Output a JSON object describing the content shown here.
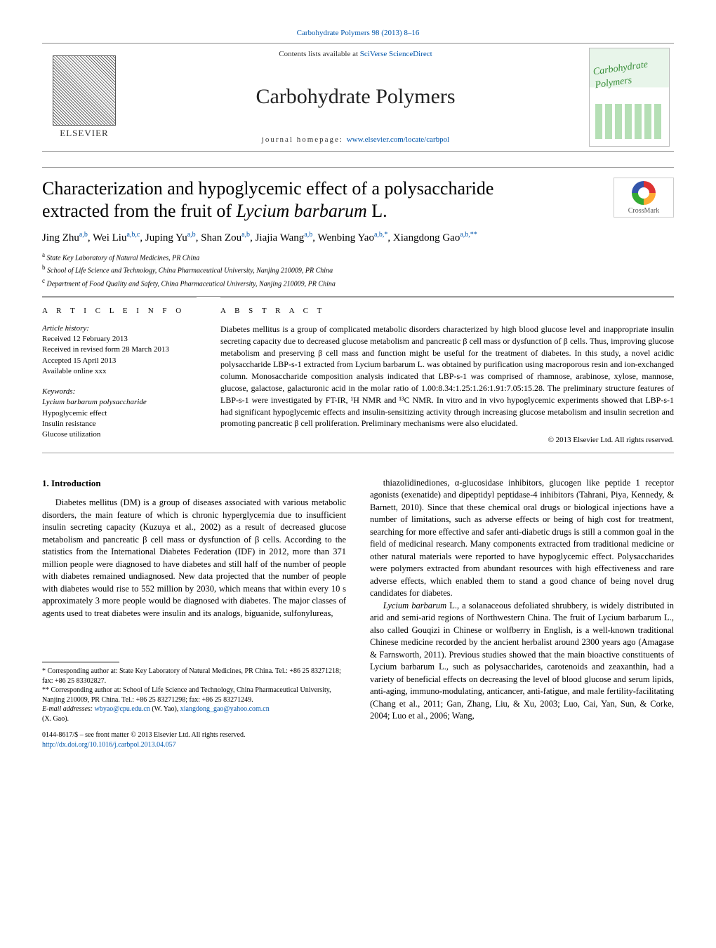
{
  "citation": "Carbohydrate Polymers 98 (2013) 8–16",
  "header": {
    "contents_prefix": "Contents lists available at ",
    "contents_link": "SciVerse ScienceDirect",
    "journal": "Carbohydrate Polymers",
    "homepage_prefix": "journal homepage: ",
    "homepage_link": "www.elsevier.com/locate/carbpol",
    "publisher": "ELSEVIER",
    "cover_label": "Carbohydrate Polymers"
  },
  "crossmark": "CrossMark",
  "title_line1": "Characterization and hypoglycemic effect of a polysaccharide",
  "title_line2_pre": "extracted from the fruit of ",
  "title_line2_ital": "Lycium barbarum",
  "title_line2_post": " L.",
  "authors_html": "Jing Zhu<sup>a,b</sup>, Wei Liu<sup>a,b,c</sup>, Juping Yu<sup>a,b</sup>, Shan Zou<sup>a,b</sup>, Jiajia Wang<sup>a,b</sup>, Wenbing Yao<sup>a,b,*</sup>, Xiangdong Gao<sup>a,b,**</sup>",
  "affiliations": {
    "a": "State Key Laboratory of Natural Medicines, PR China",
    "b": "School of Life Science and Technology, China Pharmaceutical University, Nanjing 210009, PR China",
    "c": "Department of Food Quality and Safety, China Pharmaceutical University, Nanjing 210009, PR China"
  },
  "info": {
    "head": "A R T I C L E   I N F O",
    "history_label": "Article history:",
    "history": [
      "Received 12 February 2013",
      "Received in revised form 28 March 2013",
      "Accepted 15 April 2013",
      "Available online xxx"
    ],
    "kw_label": "Keywords:",
    "keywords": [
      "Lycium barbarum polysaccharide",
      "Hypoglycemic effect",
      "Insulin resistance",
      "Glucose utilization"
    ]
  },
  "abstract": {
    "head": "A B S T R A C T",
    "text": "Diabetes mellitus is a group of complicated metabolic disorders characterized by high blood glucose level and inappropriate insulin secreting capacity due to decreased glucose metabolism and pancreatic β cell mass or dysfunction of β cells. Thus, improving glucose metabolism and preserving β cell mass and function might be useful for the treatment of diabetes. In this study, a novel acidic polysaccharide LBP-s-1 extracted from Lycium barbarum L. was obtained by purification using macroporous resin and ion-exchanged column. Monosaccharide composition analysis indicated that LBP-s-1 was comprised of rhamnose, arabinose, xylose, mannose, glucose, galactose, galacturonic acid in the molar ratio of 1.00:8.34:1.25:1.26:1.91:7.05:15.28. The preliminary structure features of LBP-s-1 were investigated by FT-IR, ¹H NMR and ¹³C NMR. In vitro and in vivo hypoglycemic experiments showed that LBP-s-1 had significant hypoglycemic effects and insulin-sensitizing activity through increasing glucose metabolism and insulin secretion and promoting pancreatic β cell proliferation. Preliminary mechanisms were also elucidated.",
    "copyright": "© 2013 Elsevier Ltd. All rights reserved."
  },
  "intro_head": "1.  Introduction",
  "col1_p1": "Diabetes mellitus (DM) is a group of diseases associated with various metabolic disorders, the main feature of which is chronic hyperglycemia due to insufficient insulin secreting capacity (Kuzuya et al., 2002) as a result of decreased glucose metabolism and pancreatic β cell mass or dysfunction of β cells. According to the statistics from the International Diabetes Federation (IDF) in 2012, more than 371 million people were diagnosed to have diabetes and still half of the number of people with diabetes remained undiagnosed. New data projected that the number of people with diabetes would rise to 552 million by 2030, which means that within every 10 s approximately 3 more people would be diagnosed with diabetes. The major classes of agents used to treat diabetes were insulin and its analogs, biguanide, sulfonylureas,",
  "col2_p1": "thiazolidinediones, α-glucosidase inhibitors, glucogen like peptide 1 receptor agonists (exenatide) and dipeptidyl peptidase-4 inhibitors (Tahrani, Piya, Kennedy, & Barnett, 2010). Since that these chemical oral drugs or biological injections have a number of limitations, such as adverse effects or being of high cost for treatment, searching for more effective and safer anti-diabetic drugs is still a common goal in the field of medicinal research. Many components extracted from traditional medicine or other natural materials were reported to have hypoglycemic effect. Polysaccharides were polymers extracted from abundant resources with high effectiveness and rare adverse effects, which enabled them to stand a good chance of being novel drug candidates for diabetes.",
  "col2_p2_pre": "",
  "col2_p2_ital": "Lycium barbarum",
  "col2_p2": " L., a solanaceous defoliated shrubbery, is widely distributed in arid and semi-arid regions of Northwestern China. The fruit of Lycium barbarum L., also called Gouqizi in Chinese or wolfberry in English, is a well-known traditional Chinese medicine recorded by the ancient herbalist around 2300 years ago (Amagase & Farnsworth, 2011). Previous studies showed that the main bioactive constituents of Lycium barbarum L., such as polysaccharides, carotenoids and zeaxanthin, had a variety of beneficial effects on decreasing the level of blood glucose and serum lipids, anti-aging, immuno-modulating, anticancer, anti-fatigue, and male fertility-facilitating (Chang et al., 2011; Gan, Zhang, Liu, & Xu, 2003; Luo, Cai, Yan, Sun, & Corke, 2004; Luo et al., 2006; Wang,",
  "footnotes": {
    "star1": "* Corresponding author at: State Key Laboratory of Natural Medicines, PR China. Tel.: +86 25 83271218; fax: +86 25 83302827.",
    "star2": "** Corresponding author at: School of Life Science and Technology, China Pharmaceutical University, Nanjing 210009, PR China. Tel.: +86 25 83271298; fax: +86 25 83271249.",
    "email_label": "E-mail addresses: ",
    "email1": "wbyao@cpu.edu.cn",
    "email1_who": " (W. Yao), ",
    "email2": "xiangdong_gao@yahoo.com.cn",
    "email2_who": " (X. Gao)."
  },
  "doi": {
    "front": "0144-8617/$ – see front matter © 2013 Elsevier Ltd. All rights reserved.",
    "link": "http://dx.doi.org/10.1016/j.carbpol.2013.04.057"
  },
  "colors": {
    "link": "#0055aa",
    "rule": "#999999",
    "text": "#000000"
  }
}
